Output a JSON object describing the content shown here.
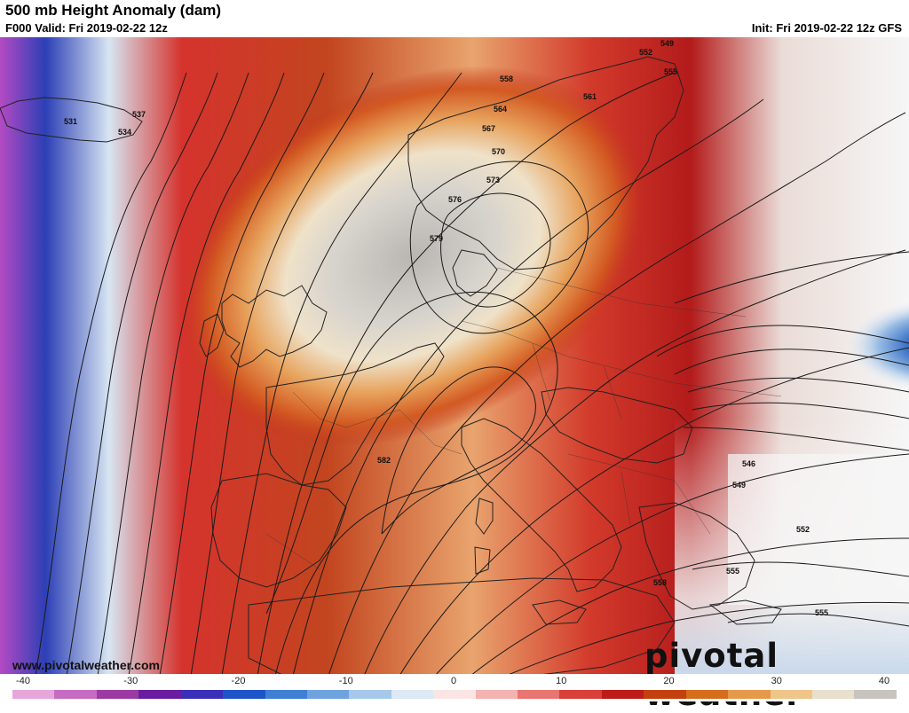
{
  "header": {
    "title": "500 mb Height Anomaly (dam)",
    "valid": "F000 Valid: Fri 2019-02-22 12z",
    "init": "Init: Fri 2019-02-22 12z GFS"
  },
  "footer": {
    "website": "www.pivotalweather.com",
    "logo_text": "pivotal weather"
  },
  "colorbar": {
    "ticks": [
      "-40",
      "-30",
      "-20",
      "-10",
      "0",
      "10",
      "20",
      "30",
      "40"
    ],
    "colors": [
      "#e6a6dc",
      "#c66bc2",
      "#9c3aa4",
      "#6a1ca0",
      "#3a2fb8",
      "#1f54c8",
      "#3f7fd4",
      "#6fa3df",
      "#a6c8ea",
      "#dce9f6",
      "#fbe4e4",
      "#f3b3b0",
      "#e97571",
      "#d9403a",
      "#bd1a1a",
      "#c2410f",
      "#d56d1d",
      "#e49a4a",
      "#efc58a",
      "#e8e0cc",
      "#c7c3bd"
    ]
  },
  "contours": {
    "labels": [
      "531",
      "534",
      "537",
      "549",
      "552",
      "555",
      "558",
      "561",
      "564",
      "567",
      "570",
      "573",
      "576",
      "579",
      "582",
      "546",
      "549",
      "552",
      "555",
      "555",
      "558"
    ]
  }
}
